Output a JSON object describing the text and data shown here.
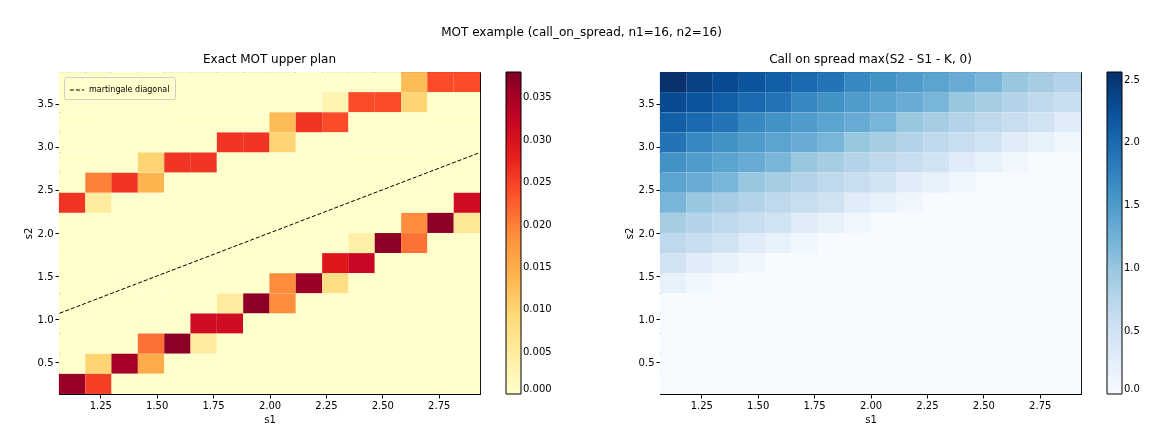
{
  "chart_data": [
    {
      "type": "heatmap",
      "title": "Exact MOT upper plan",
      "annotations": [
        "MOT example (call_on_spread, n1=16, n2=16)"
      ],
      "xlabel": "s1",
      "ylabel": "s2",
      "x": [
        1.125,
        1.242,
        1.358,
        1.475,
        1.592,
        1.708,
        1.825,
        1.942,
        2.058,
        2.175,
        2.292,
        2.408,
        2.525,
        2.642,
        2.758,
        2.875
      ],
      "y": [
        3.75,
        3.517,
        3.283,
        3.05,
        2.817,
        2.583,
        2.35,
        2.117,
        1.883,
        1.65,
        1.417,
        1.183,
        0.95,
        0.717,
        0.483,
        0.25
      ],
      "xlim": [
        1.067,
        2.933
      ],
      "ylim": [
        0.133,
        3.867
      ],
      "xticks": [
        1.25,
        {
          "value": 1.5,
          "label": "1.50"
        },
        1.75,
        {
          "value": 2,
          "label": "2.00"
        },
        2.25,
        {
          "value": 2.5,
          "label": "2.50"
        },
        2.75
      ],
      "yticks": [
        0.5,
        {
          "value": 1,
          "label": "1.0"
        },
        1.5,
        {
          "value": 2,
          "label": "2.0"
        },
        2.5,
        {
          "value": 3,
          "label": "3.0"
        },
        3.5
      ],
      "clim": [
        0,
        0.038
      ],
      "cticks": [
        {
          "value": 0,
          "label": "0.000"
        },
        {
          "value": 0.005,
          "label": "0.005"
        },
        {
          "value": 0.01,
          "label": "0.010"
        },
        {
          "value": 0.015,
          "label": "0.015"
        },
        {
          "value": 0.02,
          "label": "0.020"
        },
        {
          "value": 0.025,
          "label": "0.025"
        },
        {
          "value": 0.03,
          "label": "0.030"
        },
        {
          "value": 0.035,
          "label": "0.035"
        }
      ],
      "colors": [
        "#ffffcc",
        "#ffeda0",
        "#fed976",
        "#feb24c",
        "#fd8d3c",
        "#fc4e2a",
        "#e31a1c",
        "#bd0026",
        "#800026"
      ],
      "cells": [
        [
          0,
          0,
          0,
          0,
          0,
          0,
          0,
          0,
          0,
          0,
          0,
          0,
          0,
          0.013,
          0.024,
          0.024
        ],
        [
          0,
          0,
          0,
          0,
          0,
          0,
          0,
          0,
          0,
          0,
          0.003,
          0.024,
          0.024,
          0.01,
          0,
          0
        ],
        [
          0,
          0,
          0,
          0,
          0,
          0,
          0,
          0,
          0.013,
          0.026,
          0.024,
          0,
          0,
          0,
          0,
          0
        ],
        [
          0,
          0,
          0,
          0,
          0,
          0,
          0.026,
          0.026,
          0.01,
          0,
          0,
          0,
          0,
          0,
          0,
          0
        ],
        [
          0,
          0,
          0,
          0.01,
          0.026,
          0.026,
          0,
          0,
          0,
          0,
          0,
          0,
          0,
          0,
          0,
          0
        ],
        [
          0,
          0.02,
          0.026,
          0.014,
          0,
          0,
          0,
          0,
          0,
          0,
          0,
          0,
          0,
          0,
          0,
          0
        ],
        [
          0.026,
          0.005,
          0,
          0,
          0,
          0,
          0,
          0,
          0,
          0,
          0,
          0,
          0,
          0,
          0,
          0.031
        ],
        [
          0,
          0,
          0,
          0,
          0,
          0,
          0,
          0,
          0,
          0,
          0,
          0,
          0,
          0.019,
          0.037,
          0.006
        ],
        [
          0,
          0,
          0,
          0,
          0,
          0,
          0,
          0,
          0,
          0,
          0,
          0.004,
          0.037,
          0.021,
          0,
          0
        ],
        [
          0,
          0,
          0,
          0,
          0,
          0,
          0,
          0,
          0,
          0,
          0.029,
          0.032,
          0,
          0,
          0,
          0
        ],
        [
          0,
          0,
          0,
          0,
          0,
          0,
          0,
          0,
          0.019,
          0.036,
          0.008,
          0,
          0,
          0,
          0,
          0
        ],
        [
          0,
          0,
          0,
          0,
          0,
          0,
          0.005,
          0.037,
          0.019,
          0,
          0,
          0,
          0,
          0,
          0,
          0
        ],
        [
          0,
          0,
          0,
          0,
          0,
          0.031,
          0.031,
          0,
          0,
          0,
          0,
          0,
          0,
          0,
          0,
          0
        ],
        [
          0,
          0,
          0,
          0.021,
          0.037,
          0.005,
          0,
          0,
          0,
          0,
          0,
          0,
          0,
          0,
          0,
          0
        ],
        [
          0,
          0.01,
          0.035,
          0.015,
          0,
          0,
          0,
          0,
          0,
          0,
          0,
          0,
          0,
          0,
          0,
          0
        ],
        [
          0.036,
          0.025,
          0,
          0,
          0,
          0,
          0,
          0,
          0,
          0,
          0,
          0,
          0,
          0,
          0,
          0
        ]
      ],
      "series": [
        {
          "name": "martingale diagonal",
          "type": "line",
          "color": "#000000",
          "line_style": "dashed",
          "x": [
            1.07,
            2.93
          ],
          "values": [
            1.07,
            2.93
          ]
        }
      ],
      "legend": "top left"
    },
    {
      "type": "heatmap",
      "title": "Call on spread max(S2 - S1 - K, 0)",
      "xlabel": "s1",
      "ylabel": "s2",
      "x": [
        1.125,
        1.242,
        1.358,
        1.475,
        1.592,
        1.708,
        1.825,
        1.942,
        2.058,
        2.175,
        2.292,
        2.408,
        2.525,
        2.642,
        2.758,
        2.875
      ],
      "y": [
        3.75,
        3.517,
        3.283,
        3.05,
        2.817,
        2.583,
        2.35,
        2.117,
        1.883,
        1.65,
        1.417,
        1.183,
        0.95,
        0.717,
        0.483,
        0.25
      ],
      "xlim": [
        1.067,
        2.933
      ],
      "ylim": [
        0.133,
        3.867
      ],
      "xticks": [
        1.25,
        {
          "value": 1.5,
          "label": "1.50"
        },
        1.75,
        {
          "value": 2,
          "label": "2.00"
        },
        2.25,
        {
          "value": 2.5,
          "label": "2.50"
        },
        2.75
      ],
      "yticks": [
        0.5,
        {
          "value": 1,
          "label": "1.0"
        },
        1.5,
        {
          "value": 2,
          "label": "2.0"
        },
        2.5,
        {
          "value": 3,
          "label": "3.0"
        },
        3.5
      ],
      "clim": [
        0,
        2.56
      ],
      "cticks": [
        {
          "value": 0,
          "label": "0.0"
        },
        0.5,
        {
          "value": 1,
          "label": "1.0"
        },
        1.5,
        {
          "value": 2,
          "label": "2.0"
        },
        2.5
      ],
      "colors": [
        "#f7fbff",
        "#deebf7",
        "#c6dbef",
        "#9ecae1",
        "#6baed6",
        "#4292c6",
        "#2171b5",
        "#08519c",
        "#08306b"
      ],
      "cells": [
        [
          2.55,
          2.4,
          2.3,
          2.2,
          2.1,
          2.0,
          1.9,
          1.7,
          1.6,
          1.5,
          1.4,
          1.3,
          1.2,
          1.0,
          0.9,
          0.8
        ],
        [
          2.3,
          2.2,
          2.1,
          2.0,
          1.9,
          1.7,
          1.6,
          1.5,
          1.4,
          1.3,
          1.2,
          1.0,
          0.9,
          0.8,
          0.7,
          0.6
        ],
        [
          2.1,
          2.0,
          1.9,
          1.7,
          1.6,
          1.5,
          1.4,
          1.3,
          1.2,
          1.0,
          0.9,
          0.8,
          0.7,
          0.6,
          0.5,
          0.3
        ],
        [
          1.9,
          1.7,
          1.6,
          1.5,
          1.4,
          1.3,
          1.2,
          1.0,
          0.9,
          0.8,
          0.7,
          0.6,
          0.5,
          0.3,
          0.2,
          0.1
        ],
        [
          1.6,
          1.5,
          1.4,
          1.3,
          1.2,
          1.0,
          0.9,
          0.8,
          0.7,
          0.6,
          0.5,
          0.3,
          0.2,
          0.1,
          0,
          0
        ],
        [
          1.4,
          1.3,
          1.2,
          1.0,
          0.9,
          0.8,
          0.7,
          0.6,
          0.5,
          0.3,
          0.2,
          0.1,
          0,
          0,
          0,
          0
        ],
        [
          1.2,
          1.0,
          0.9,
          0.8,
          0.7,
          0.6,
          0.5,
          0.3,
          0.2,
          0.1,
          0,
          0,
          0,
          0,
          0,
          0
        ],
        [
          0.9,
          0.8,
          0.7,
          0.6,
          0.5,
          0.3,
          0.2,
          0.1,
          0,
          0,
          0,
          0,
          0,
          0,
          0,
          0
        ],
        [
          0.7,
          0.6,
          0.5,
          0.3,
          0.2,
          0.1,
          0,
          0,
          0,
          0,
          0,
          0,
          0,
          0,
          0,
          0
        ],
        [
          0.5,
          0.3,
          0.2,
          0.1,
          0,
          0,
          0,
          0,
          0,
          0,
          0,
          0,
          0,
          0,
          0,
          0
        ],
        [
          0.2,
          0.1,
          0,
          0,
          0,
          0,
          0,
          0,
          0,
          0,
          0,
          0,
          0,
          0,
          0,
          0
        ],
        [
          0,
          0,
          0,
          0,
          0,
          0,
          0,
          0,
          0,
          0,
          0,
          0,
          0,
          0,
          0,
          0
        ],
        [
          0,
          0,
          0,
          0,
          0,
          0,
          0,
          0,
          0,
          0,
          0,
          0,
          0,
          0,
          0,
          0
        ],
        [
          0,
          0,
          0,
          0,
          0,
          0,
          0,
          0,
          0,
          0,
          0,
          0,
          0,
          0,
          0,
          0
        ],
        [
          0,
          0,
          0,
          0,
          0,
          0,
          0,
          0,
          0,
          0,
          0,
          0,
          0,
          0,
          0,
          0
        ],
        [
          0,
          0,
          0,
          0,
          0,
          0,
          0,
          0,
          0,
          0,
          0,
          0,
          0,
          0,
          0,
          0
        ]
      ]
    }
  ]
}
